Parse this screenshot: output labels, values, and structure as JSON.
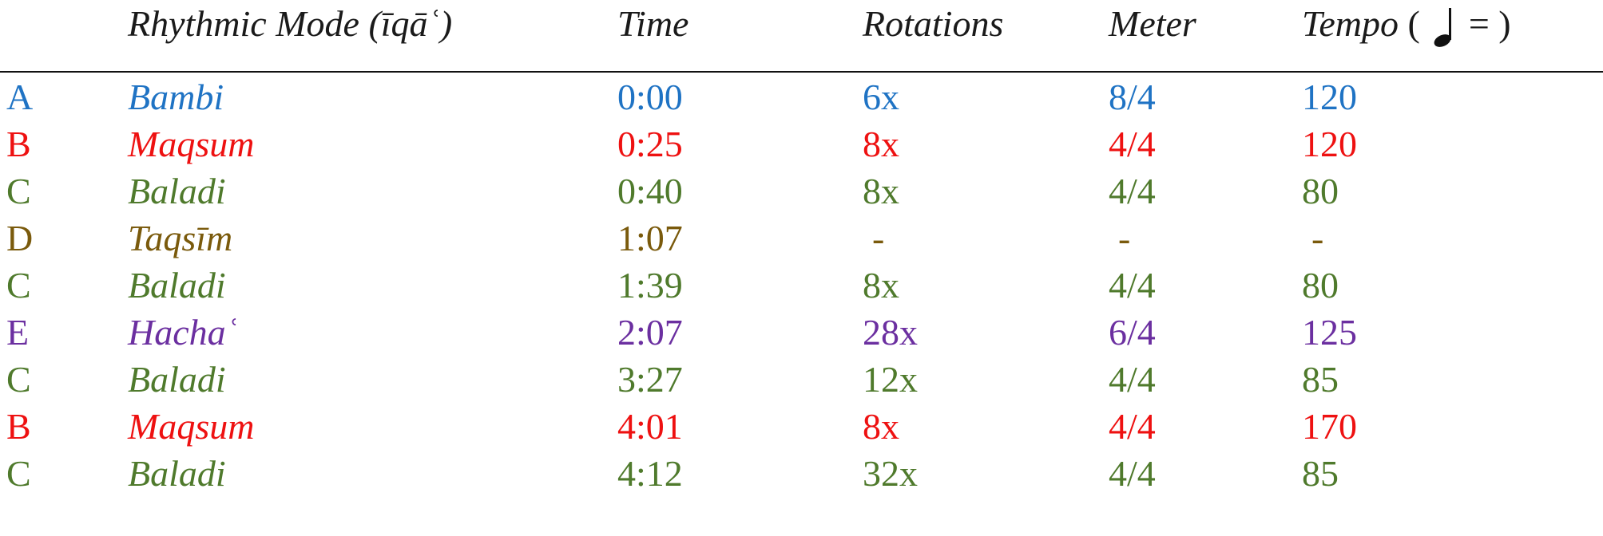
{
  "header": {
    "rhythmic_mode": "Rhythmic Mode (īqāʿ)",
    "time": "Time",
    "rotations": "Rotations",
    "meter": "Meter",
    "tempo_label": "Tempo",
    "tempo_open": "(",
    "tempo_equals": "= )"
  },
  "colors": {
    "A": "#1f73c4",
    "B": "#ee1111",
    "C": "#4f7a2c",
    "D": "#7a5a0c",
    "E": "#6b2fa0"
  },
  "rows": [
    {
      "section": "A",
      "mode": "Bambi",
      "time": "0:00",
      "rotations": "6x",
      "meter": "8/4",
      "tempo": "120"
    },
    {
      "section": "B",
      "mode": "Maqsum",
      "time": "0:25",
      "rotations": "8x",
      "meter": "4/4",
      "tempo": "120"
    },
    {
      "section": "C",
      "mode": "Baladi",
      "time": "0:40",
      "rotations": "8x",
      "meter": "4/4",
      "tempo": "80"
    },
    {
      "section": "D",
      "mode": "Taqsīm",
      "time": "1:07",
      "rotations": "-",
      "meter": "-",
      "tempo": "-"
    },
    {
      "section": "C",
      "mode": "Baladi",
      "time": "1:39",
      "rotations": "8x",
      "meter": "4/4",
      "tempo": "80"
    },
    {
      "section": "E",
      "mode": "Hachaʿ",
      "time": "2:07",
      "rotations": "28x",
      "meter": "6/4",
      "tempo": "125"
    },
    {
      "section": "C",
      "mode": "Baladi",
      "time": "3:27",
      "rotations": "12x",
      "meter": "4/4",
      "tempo": "85"
    },
    {
      "section": "B",
      "mode": "Maqsum",
      "time": "4:01",
      "rotations": "8x",
      "meter": "4/4",
      "tempo": "170"
    },
    {
      "section": "C",
      "mode": "Baladi",
      "time": "4:12",
      "rotations": "32x",
      "meter": "4/4",
      "tempo": "85"
    }
  ]
}
